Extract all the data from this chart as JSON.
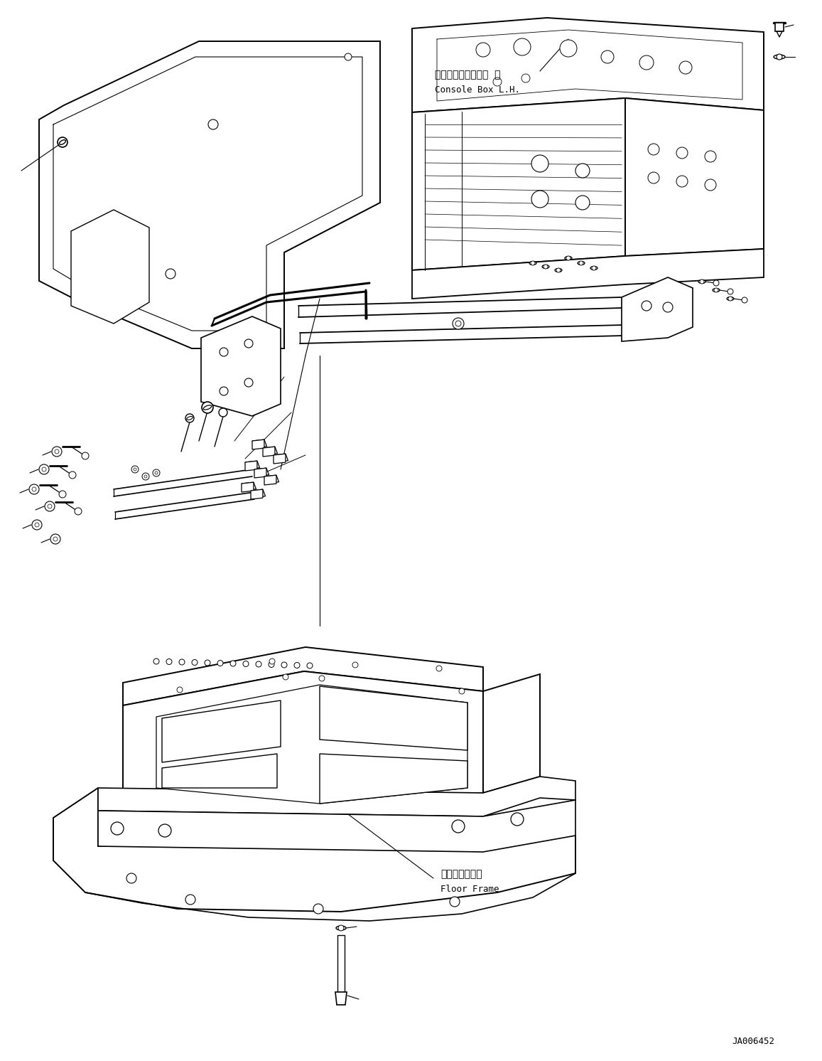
{
  "background_color": "#ffffff",
  "line_color": "#000000",
  "fig_width": 11.57,
  "fig_height": 14.92,
  "dpi": 100,
  "labels": {
    "console_box_jp": "コンソールボックス  左",
    "console_box_en": "Console Box L.H.",
    "floor_frame_jp": "フロアフレーム",
    "floor_frame_en": "Floor Frame",
    "diagram_id": "JA006452"
  }
}
